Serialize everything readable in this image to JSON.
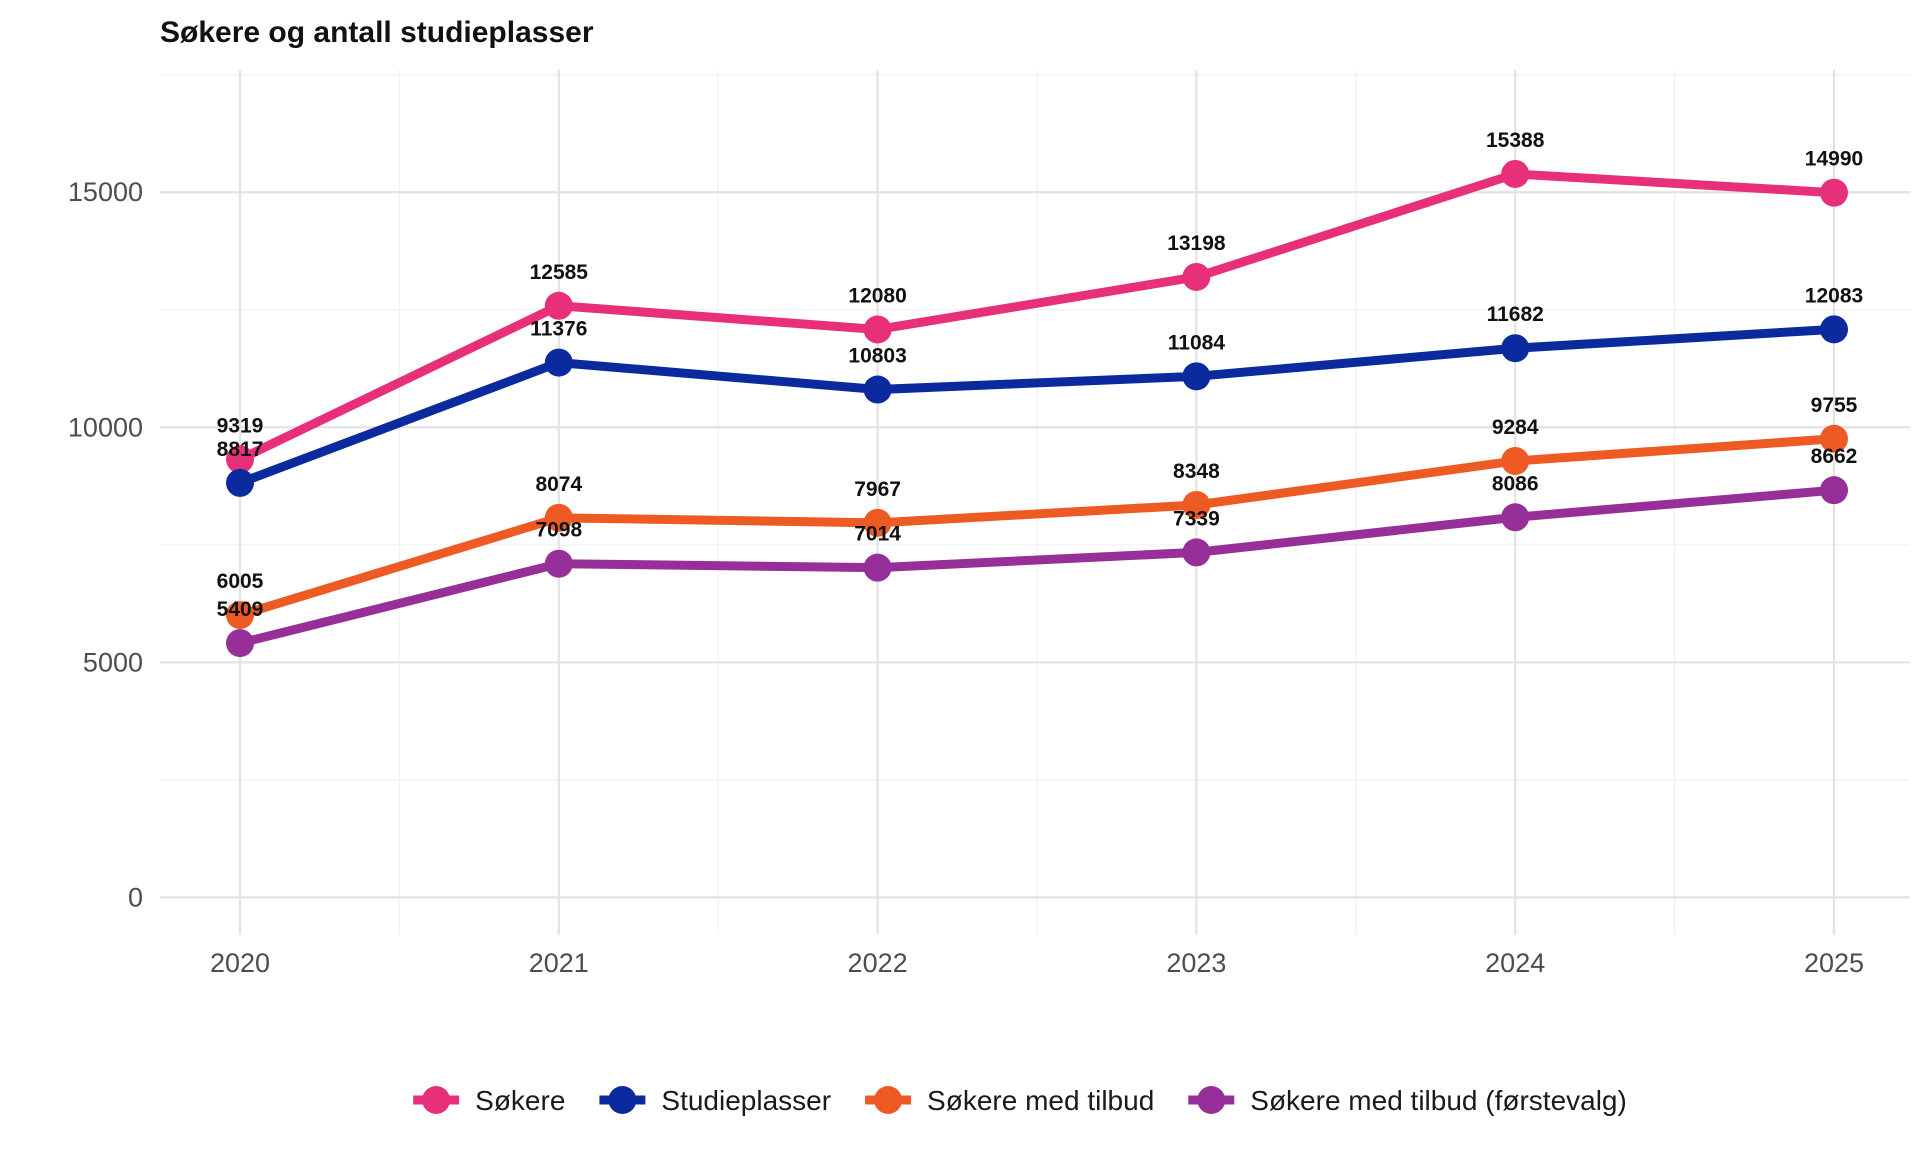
{
  "chart_data": {
    "type": "line",
    "title": "Søkere og antall studieplasser",
    "xlabel": "",
    "ylabel": "",
    "x": [
      "2020",
      "2021",
      "2022",
      "2023",
      "2024",
      "2025"
    ],
    "ylim": [
      -800,
      17600
    ],
    "yticks": [
      0,
      5000,
      10000,
      15000
    ],
    "ytick_labels": [
      "0",
      "5000",
      "10000",
      "15000"
    ],
    "grid": true,
    "legend_position": "bottom",
    "series": [
      {
        "name": "Søkere",
        "color": "#E8307A",
        "values": [
          9319,
          12585,
          12080,
          13198,
          15388,
          14990
        ]
      },
      {
        "name": "Studieplasser",
        "color": "#0A2A9E",
        "values": [
          8817,
          11376,
          10803,
          11084,
          11682,
          12083
        ]
      },
      {
        "name": "Søkere med tilbud",
        "color": "#EE5A24",
        "values": [
          6005,
          8074,
          7967,
          8348,
          9284,
          9755
        ]
      },
      {
        "name": "Søkere med tilbud (førstevalg)",
        "color": "#963098",
        "values": [
          5409,
          7098,
          7014,
          7339,
          8086,
          8662
        ]
      }
    ]
  }
}
